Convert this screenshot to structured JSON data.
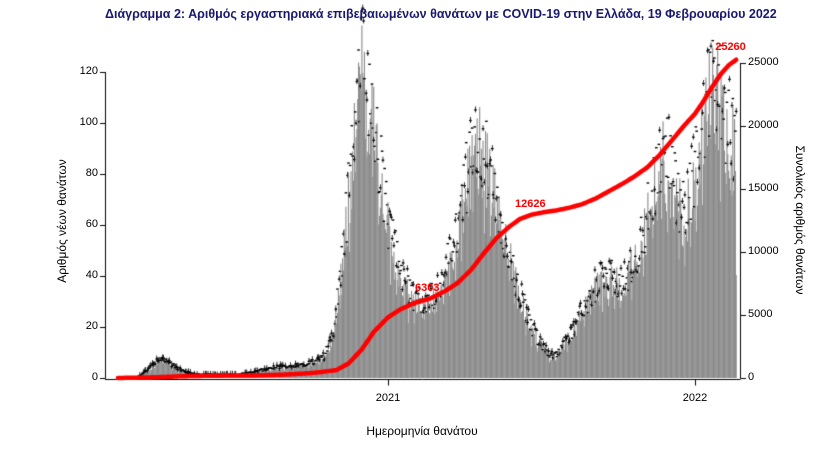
{
  "title": "Διάγραμμα 2: Αριθμός εργαστηριακά επιβεβαιωμένων θανάτων με COVID-19 στην Ελλάδα, 19 Φεβρουαρίου 2022",
  "colors": {
    "title": "#191970",
    "bar": "#8a8a8a",
    "marker": "#000000",
    "line": "#ff0000",
    "annotation": "#ff0000",
    "axis": "#000000"
  },
  "chart_data": {
    "type": "bar+line",
    "title": "Διάγραμμα 2: Αριθμός εργαστηριακά επιβεβαιωμένων θανάτων με COVID-19 στην Ελλάδα, 19 Φεβρουαρίου 2022",
    "xlabel": "Ημερομηνία θανάτου",
    "ylabel_left": "Αριθμός νέων θανάτων",
    "ylabel_right": "Συνολικός αριθμός θανάτων",
    "x_ticks": [
      "2021",
      "2022"
    ],
    "y_left_ticks": [
      0,
      20,
      40,
      60,
      80,
      100,
      120
    ],
    "y_right_ticks": [
      0,
      5000,
      10000,
      15000,
      20000,
      25000
    ],
    "ylim_left": [
      0,
      127
    ],
    "ylim_right": [
      0,
      25800
    ],
    "x_range": [
      "2020-02-15",
      "2022-02-19"
    ],
    "legend": "off",
    "grid": "off",
    "daily_deaths": {
      "series_name": "Αριθμός νέων θανάτων (γκρι ράβδοι)",
      "dates": [
        "2020-02-15",
        "2020-03-08",
        "2020-03-14",
        "2020-03-22",
        "2020-03-29",
        "2020-04-06",
        "2020-04-14",
        "2020-04-22",
        "2020-05-05",
        "2020-05-20",
        "2020-06-10",
        "2020-07-05",
        "2020-07-25",
        "2020-08-10",
        "2020-08-25",
        "2020-09-10",
        "2020-09-25",
        "2020-10-08",
        "2020-10-18",
        "2020-10-28",
        "2020-11-05",
        "2020-11-12",
        "2020-11-19",
        "2020-11-26",
        "2020-12-02",
        "2020-12-08",
        "2020-12-14",
        "2020-12-20",
        "2020-12-27",
        "2021-01-03",
        "2021-01-10",
        "2021-01-18",
        "2021-01-26",
        "2021-02-03",
        "2021-02-12",
        "2021-02-20",
        "2021-03-01",
        "2021-03-10",
        "2021-03-18",
        "2021-03-26",
        "2021-04-03",
        "2021-04-10",
        "2021-04-16",
        "2021-04-22",
        "2021-04-29",
        "2021-05-06",
        "2021-05-13",
        "2021-05-20",
        "2021-05-28",
        "2021-06-05",
        "2021-06-13",
        "2021-06-21",
        "2021-06-29",
        "2021-07-08",
        "2021-07-16",
        "2021-07-24",
        "2021-08-01",
        "2021-08-09",
        "2021-08-17",
        "2021-08-25",
        "2021-09-02",
        "2021-09-10",
        "2021-09-18",
        "2021-09-26",
        "2021-10-04",
        "2021-10-12",
        "2021-10-20",
        "2021-10-28",
        "2021-11-05",
        "2021-11-12",
        "2021-11-18",
        "2021-11-24",
        "2021-12-01",
        "2021-12-07",
        "2021-12-13",
        "2021-12-19",
        "2021-12-26",
        "2022-01-02",
        "2022-01-08",
        "2022-01-14",
        "2022-01-20",
        "2022-01-26",
        "2022-02-01",
        "2022-02-07",
        "2022-02-13",
        "2022-02-19"
      ],
      "values": [
        0,
        0,
        1,
        3,
        5,
        7,
        6,
        4,
        2,
        1,
        1,
        1,
        2,
        3,
        4,
        4,
        5,
        6,
        8,
        16,
        35,
        58,
        82,
        105,
        121,
        112,
        98,
        85,
        70,
        55,
        46,
        38,
        33,
        29,
        27,
        29,
        33,
        40,
        48,
        58,
        72,
        84,
        93,
        88,
        80,
        72,
        62,
        52,
        44,
        33,
        26,
        19,
        14,
        10,
        8,
        10,
        14,
        18,
        23,
        28,
        33,
        36,
        38,
        37,
        36,
        38,
        44,
        50,
        60,
        70,
        80,
        86,
        82,
        72,
        66,
        64,
        70,
        80,
        92,
        103,
        110,
        112,
        105,
        98,
        92,
        88
      ]
    },
    "cumulative_deaths": {
      "series_name": "Συνολικός αριθμός θανάτων (κόκκινη γραμμή)",
      "dates": [
        "2020-02-15",
        "2020-04-01",
        "2020-05-01",
        "2020-06-01",
        "2020-07-01",
        "2020-08-01",
        "2020-09-01",
        "2020-10-01",
        "2020-10-15",
        "2020-11-01",
        "2020-11-15",
        "2020-12-01",
        "2020-12-15",
        "2021-01-01",
        "2021-01-15",
        "2021-02-01",
        "2021-02-20",
        "2021-03-10",
        "2021-03-25",
        "2021-04-10",
        "2021-04-25",
        "2021-05-10",
        "2021-05-25",
        "2021-06-07",
        "2021-06-20",
        "2021-07-05",
        "2021-07-20",
        "2021-08-05",
        "2021-08-20",
        "2021-09-05",
        "2021-09-20",
        "2021-10-05",
        "2021-10-20",
        "2021-11-05",
        "2021-11-20",
        "2021-12-05",
        "2021-12-20",
        "2022-01-01",
        "2022-01-10",
        "2022-01-20",
        "2022-02-01",
        "2022-02-10",
        "2022-02-19"
      ],
      "values": [
        0,
        60,
        140,
        180,
        195,
        210,
        270,
        390,
        480,
        640,
        1150,
        2280,
        3650,
        4810,
        5420,
        5950,
        6303,
        6900,
        7550,
        8600,
        9900,
        11100,
        12000,
        12626,
        12950,
        13150,
        13300,
        13520,
        13800,
        14250,
        14800,
        15350,
        15950,
        16700,
        17700,
        18900,
        20100,
        20970,
        21850,
        22950,
        24150,
        24820,
        25260
      ]
    },
    "annotations": [
      {
        "label": "6303",
        "date": "2021-02-20",
        "value": 6303
      },
      {
        "label": "12626",
        "date": "2021-06-07",
        "value": 12626
      },
      {
        "label": "25260",
        "date": "2022-02-19",
        "value": 25260
      }
    ]
  }
}
